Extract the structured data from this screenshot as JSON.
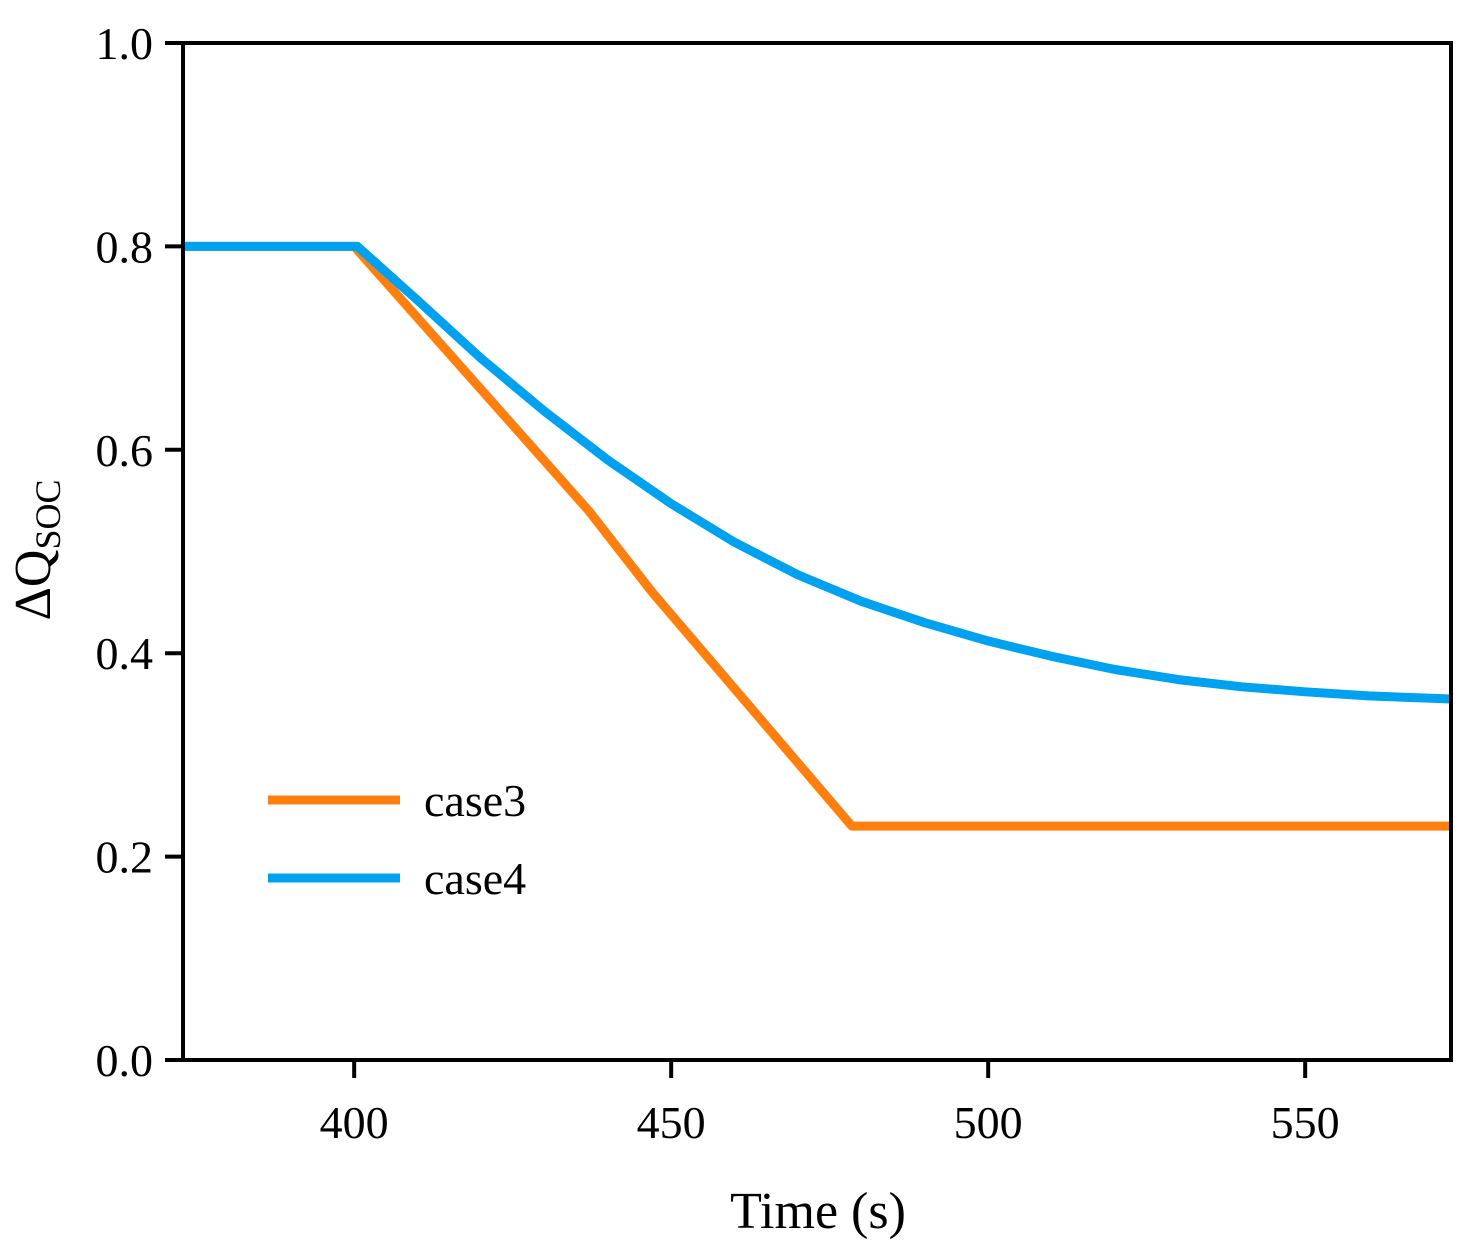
{
  "chart_data": {
    "type": "line",
    "xlabel": "Time (s)",
    "ylabel": {
      "main": "ΔQ",
      "sub": "SOC"
    },
    "xlim": [
      373,
      573
    ],
    "ylim": [
      0.0,
      1.0
    ],
    "x_ticks": [
      400,
      450,
      500,
      550
    ],
    "x_tick_labels": [
      "400",
      "450",
      "500",
      "550"
    ],
    "y_ticks": [
      0.0,
      0.2,
      0.4,
      0.6,
      0.8,
      1.0
    ],
    "y_tick_labels": [
      "0.0",
      "0.2",
      "0.4",
      "0.6",
      "0.8",
      "1.0"
    ],
    "grid": false,
    "legend_position": "lower-left",
    "series": [
      {
        "name": "case3",
        "color": "#FF7F0E",
        "x": [
          373,
          400,
          437,
          447,
          478.5,
          520,
          573
        ],
        "y": [
          0.8,
          0.8,
          0.54,
          0.46,
          0.23,
          0.23,
          0.23
        ]
      },
      {
        "name": "case4",
        "color": "#00A2F0",
        "x": [
          373,
          400.5,
          410,
          420,
          430,
          440,
          450,
          460,
          470,
          480,
          490,
          500,
          510,
          520,
          530,
          540,
          550,
          560,
          573
        ],
        "y": [
          0.8,
          0.8,
          0.747,
          0.69,
          0.638,
          0.59,
          0.547,
          0.509,
          0.477,
          0.451,
          0.43,
          0.412,
          0.397,
          0.384,
          0.374,
          0.367,
          0.362,
          0.358,
          0.355
        ]
      }
    ]
  }
}
